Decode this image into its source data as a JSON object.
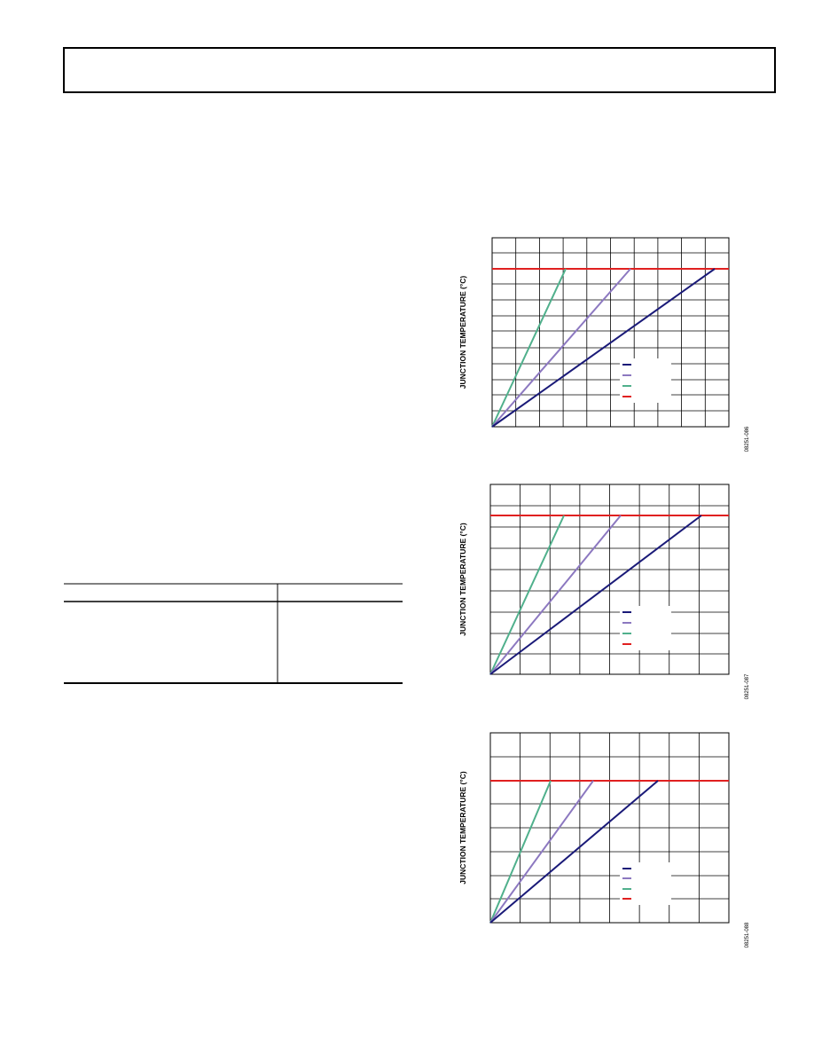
{
  "figures": [
    {
      "y_label": "JUNCTION TEMPERATURE (°C)",
      "code": "08251-086"
    },
    {
      "y_label": "JUNCTION TEMPERATURE (°C)",
      "code": "08251-087"
    },
    {
      "y_label": "JUNCTION TEMPERATURE (°C)",
      "code": "08251-088"
    }
  ]
}
